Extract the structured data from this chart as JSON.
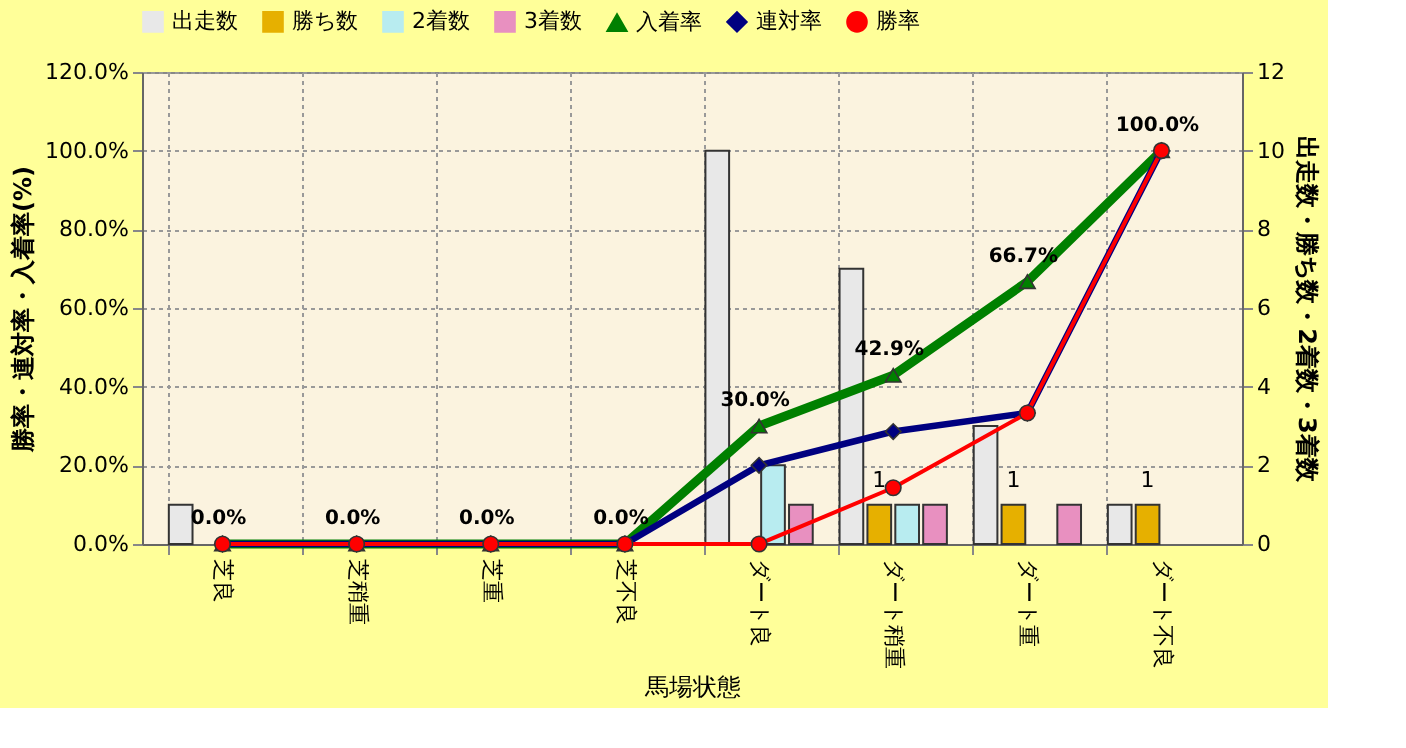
{
  "chart_data": {
    "type": "bar",
    "categories": [
      "芝良",
      "芝稍重",
      "芝重",
      "芝不良",
      "ダート良",
      "ダート稍重",
      "ダート重",
      "ダート不良"
    ],
    "xlabel": "馬場状態",
    "ylabel": "勝率・連対率・入着率(%)",
    "y2label": "出走数・勝ち数・2着数・3着数",
    "series": [
      {
        "name": "出走数",
        "axis": "y2",
        "color": "#e8e8e8",
        "values": [
          1,
          0,
          0,
          0,
          10,
          7,
          3,
          1
        ]
      },
      {
        "name": "勝ち数",
        "axis": "y2",
        "color": "#e6b000",
        "values": [
          0,
          0,
          0,
          0,
          0,
          1,
          1,
          1
        ],
        "value_labels": [
          null,
          null,
          null,
          null,
          null,
          "1",
          "1",
          "1"
        ]
      },
      {
        "name": "2着数",
        "axis": "y2",
        "color": "#b8ecf0",
        "values": [
          0,
          0,
          0,
          0,
          2,
          1,
          0,
          0
        ]
      },
      {
        "name": "3着数",
        "axis": "y2",
        "color": "#e890c0",
        "values": [
          0,
          0,
          0,
          0,
          1,
          1,
          1,
          0
        ]
      },
      {
        "name": "入着率",
        "type": "line",
        "marker": "triangle",
        "color": "#008000",
        "values": [
          0,
          0,
          0,
          0,
          30,
          42.9,
          66.7,
          100
        ],
        "value_labels": [
          "0.0%",
          "0.0%",
          "0.0%",
          "0.0%",
          "30.0%",
          "42.9%",
          "66.7%",
          "100.0%"
        ]
      },
      {
        "name": "連対率",
        "type": "line",
        "marker": "diamond",
        "color": "#000080",
        "values": [
          0,
          0,
          0,
          0,
          20,
          28.6,
          33.3,
          100
        ]
      },
      {
        "name": "勝率",
        "type": "line",
        "marker": "circle",
        "color": "#ff0000",
        "values": [
          0,
          0,
          0,
          0,
          0,
          14.3,
          33.3,
          100
        ]
      }
    ],
    "ylim": [
      0,
      120
    ],
    "yticks": [
      {
        "value": 0,
        "label": "0.0%"
      },
      {
        "value": 20,
        "label": "20.0%"
      },
      {
        "value": 40,
        "label": "40.0%"
      },
      {
        "value": 60,
        "label": "60.0%"
      },
      {
        "value": 80,
        "label": "80.0%"
      },
      {
        "value": 100,
        "label": "100.0%"
      },
      {
        "value": 120,
        "label": "120.0%"
      }
    ],
    "y2lim": [
      0,
      12
    ],
    "y2ticks": [
      0,
      2,
      4,
      6,
      8,
      10,
      12
    ],
    "grid": true,
    "legend": "top"
  }
}
